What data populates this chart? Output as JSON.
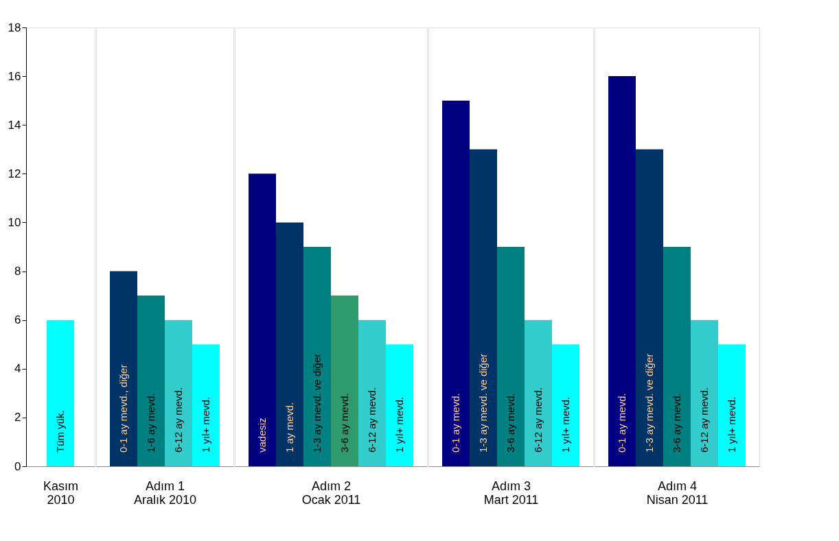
{
  "chart_data": [
    {
      "type": "bar",
      "xlabel": "Kasım\n2010",
      "categories": [
        "Tüm yük."
      ],
      "values": [
        6
      ],
      "colors": [
        "#00ffff"
      ],
      "ylim": [
        0,
        18
      ],
      "yticks": [
        0,
        2,
        4,
        6,
        8,
        10,
        12,
        14,
        16,
        18
      ]
    },
    {
      "type": "bar",
      "xlabel": "Adım 1\nAralık 2010",
      "categories": [
        "0-1 ay mevd., diğer",
        "1-6 ay  mevd.",
        "6-12 ay  mevd.",
        "1 yıl+  mevd."
      ],
      "values": [
        8,
        7,
        6,
        5
      ],
      "colors": [
        "#003366",
        "#008080",
        "#33cccc",
        "#00ffff"
      ],
      "ylim": [
        0,
        18
      ],
      "yticks": [
        0,
        2,
        4,
        6,
        8,
        10,
        12,
        14,
        16,
        18
      ],
      "tick_labels": "x"
    },
    {
      "type": "bar",
      "xlabel": "Adım 2\nOcak 2011",
      "categories": [
        "vadesiz",
        "1 ay mevd.",
        "1-3 ay mevd. ve diğer",
        "3-6 ay  mevd.",
        "6-12 ay  mevd.",
        "1 yıl+  mevd."
      ],
      "values": [
        12,
        10,
        9,
        7,
        6,
        5
      ],
      "colors": [
        "#000080",
        "#003366",
        "#008080",
        "#2e9a6e",
        "#33cccc",
        "#00ffff"
      ],
      "ylim": [
        0,
        18
      ],
      "yticks": [
        0,
        2,
        4,
        6,
        8,
        10,
        12,
        14,
        16,
        18
      ],
      "tick_labels": "x"
    },
    {
      "type": "bar",
      "xlabel": "Adım 3\nMart 2011",
      "categories": [
        "0-1 ay mevd.",
        "1-3 ay mevd. ve diğer",
        "3-6 ay mevd.",
        "6-12 ay  mevd.",
        "1 yıl+  mevd."
      ],
      "values": [
        15,
        13,
        9,
        6,
        5
      ],
      "colors": [
        "#000080",
        "#003366",
        "#008080",
        "#33cccc",
        "#00ffff"
      ],
      "ylim": [
        0,
        18
      ],
      "yticks": [
        0,
        2,
        4,
        6,
        8,
        10,
        12,
        14,
        16,
        18
      ],
      "tick_labels": "x"
    },
    {
      "type": "bar",
      "xlabel": "Adım 4\nNisan 2011",
      "categories": [
        "0-1 ay mevd.",
        "1-3 ay mevd. ve diğer",
        "3-6 ay mevd.",
        "6-12 ay  mevd.",
        "1 yıl+  mevd."
      ],
      "values": [
        16,
        13,
        9,
        6,
        5
      ],
      "colors": [
        "#000080",
        "#003366",
        "#008080",
        "#33cccc",
        "#00ffff"
      ],
      "ylim": [
        0,
        18
      ],
      "yticks": [
        0,
        2,
        4,
        6,
        8,
        10,
        12,
        14,
        16,
        18
      ],
      "tick_labels": "x"
    }
  ]
}
